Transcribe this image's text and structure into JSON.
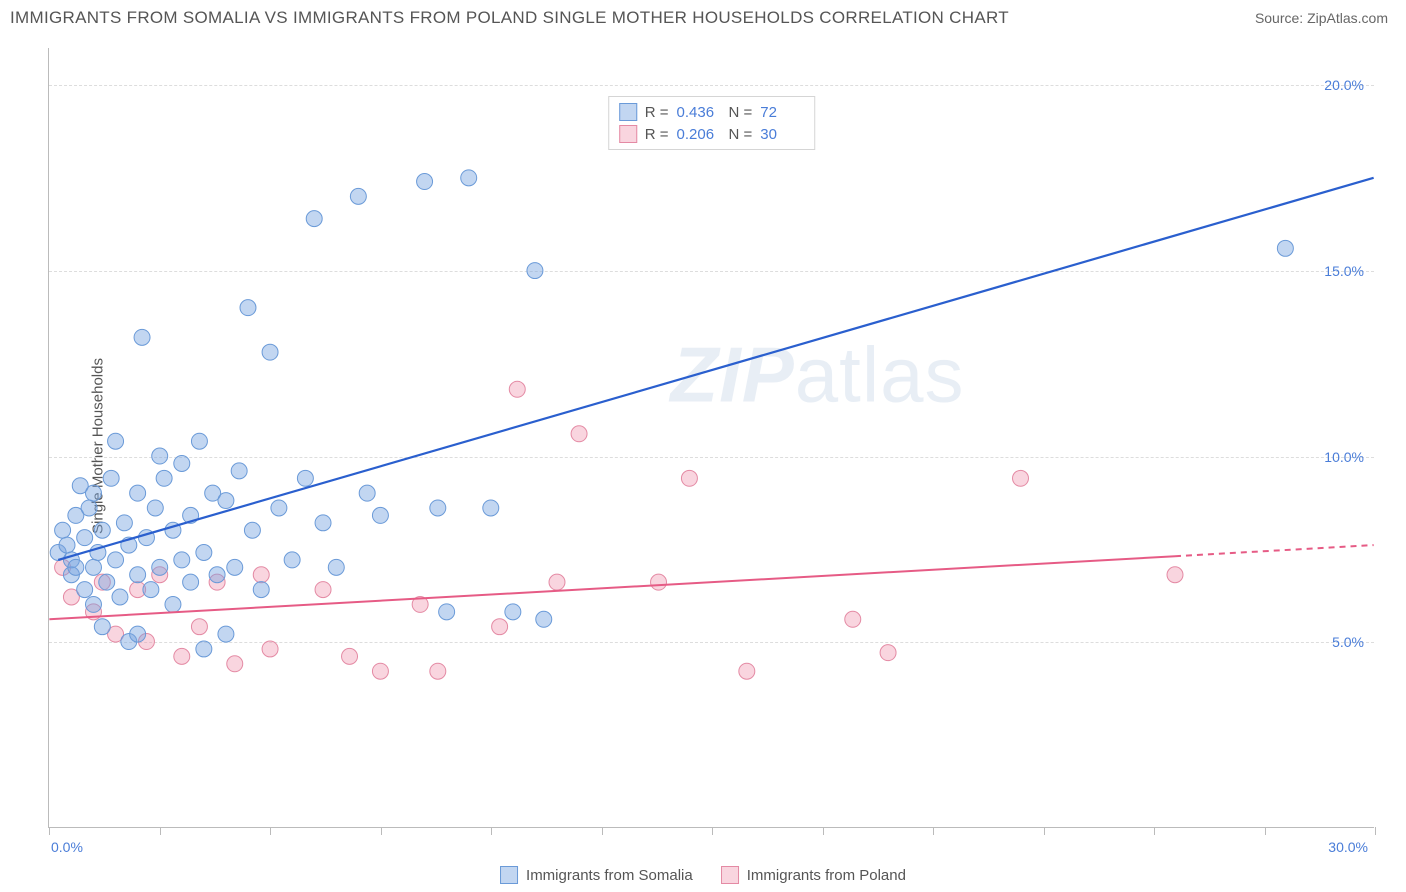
{
  "title": "IMMIGRANTS FROM SOMALIA VS IMMIGRANTS FROM POLAND SINGLE MOTHER HOUSEHOLDS CORRELATION CHART",
  "source": "Source: ZipAtlas.com",
  "ylabel": "Single Mother Households",
  "watermark_a": "ZIP",
  "watermark_b": "atlas",
  "chart": {
    "type": "scatter",
    "xlim": [
      0,
      30
    ],
    "ylim": [
      0,
      21
    ],
    "x_ticks": [
      0,
      2.5,
      5,
      7.5,
      10,
      12.5,
      15,
      17.5,
      20,
      22.5,
      25,
      27.5,
      30
    ],
    "x_tick_labels_shown": {
      "0": "0.0%",
      "30": "30.0%"
    },
    "y_grid": [
      5,
      10,
      15,
      20
    ],
    "y_tick_labels": {
      "5": "5.0%",
      "10": "10.0%",
      "15": "15.0%",
      "20": "20.0%"
    },
    "grid_color": "#dddddd",
    "axis_color": "#bbbbbb",
    "label_text_color": "#555555",
    "tick_value_color": "#4a7dd8",
    "background_color": "#ffffff",
    "series": [
      {
        "name": "Immigrants from Somalia",
        "color_fill": "rgba(120,165,225,0.45)",
        "color_stroke": "#6a9ad8",
        "trend_color": "#2a5fce",
        "trend_width": 2.2,
        "marker_radius": 8,
        "R": "0.436",
        "N": "72",
        "trend": {
          "x1": 0.2,
          "y1": 7.2,
          "x2": 30,
          "y2": 17.5
        },
        "points": [
          [
            0.2,
            7.4
          ],
          [
            0.3,
            8.0
          ],
          [
            0.4,
            7.6
          ],
          [
            0.5,
            6.8
          ],
          [
            0.5,
            7.2
          ],
          [
            0.6,
            8.4
          ],
          [
            0.6,
            7.0
          ],
          [
            0.7,
            9.2
          ],
          [
            0.8,
            6.4
          ],
          [
            0.8,
            7.8
          ],
          [
            0.9,
            8.6
          ],
          [
            1.0,
            7.0
          ],
          [
            1.0,
            6.0
          ],
          [
            1.0,
            9.0
          ],
          [
            1.1,
            7.4
          ],
          [
            1.2,
            5.4
          ],
          [
            1.2,
            8.0
          ],
          [
            1.3,
            6.6
          ],
          [
            1.4,
            9.4
          ],
          [
            1.5,
            7.2
          ],
          [
            1.5,
            10.4
          ],
          [
            1.6,
            6.2
          ],
          [
            1.7,
            8.2
          ],
          [
            1.8,
            7.6
          ],
          [
            1.8,
            5.0
          ],
          [
            2.0,
            9.0
          ],
          [
            2.0,
            6.8
          ],
          [
            2.1,
            13.2
          ],
          [
            2.2,
            7.8
          ],
          [
            2.3,
            6.4
          ],
          [
            2.4,
            8.6
          ],
          [
            2.5,
            7.0
          ],
          [
            2.5,
            10.0
          ],
          [
            2.6,
            9.4
          ],
          [
            2.8,
            6.0
          ],
          [
            2.8,
            8.0
          ],
          [
            3.0,
            7.2
          ],
          [
            3.0,
            9.8
          ],
          [
            3.2,
            6.6
          ],
          [
            3.2,
            8.4
          ],
          [
            3.4,
            10.4
          ],
          [
            3.5,
            7.4
          ],
          [
            3.7,
            9.0
          ],
          [
            3.8,
            6.8
          ],
          [
            4.0,
            8.8
          ],
          [
            4.2,
            7.0
          ],
          [
            4.3,
            9.6
          ],
          [
            4.5,
            14.0
          ],
          [
            4.6,
            8.0
          ],
          [
            4.8,
            6.4
          ],
          [
            5.0,
            12.8
          ],
          [
            5.2,
            8.6
          ],
          [
            5.5,
            7.2
          ],
          [
            5.8,
            9.4
          ],
          [
            6.0,
            16.4
          ],
          [
            6.2,
            8.2
          ],
          [
            6.5,
            7.0
          ],
          [
            7.0,
            17.0
          ],
          [
            7.2,
            9.0
          ],
          [
            7.5,
            8.4
          ],
          [
            8.5,
            17.4
          ],
          [
            8.8,
            8.6
          ],
          [
            9.0,
            5.8
          ],
          [
            9.5,
            17.5
          ],
          [
            10.0,
            8.6
          ],
          [
            10.5,
            5.8
          ],
          [
            11.0,
            15.0
          ],
          [
            11.2,
            5.6
          ],
          [
            28.0,
            15.6
          ],
          [
            4.0,
            5.2
          ],
          [
            3.5,
            4.8
          ],
          [
            2.0,
            5.2
          ]
        ]
      },
      {
        "name": "Immigrants from Poland",
        "color_fill": "rgba(240,150,175,0.40)",
        "color_stroke": "#e48aa4",
        "trend_color": "#e65b85",
        "trend_width": 2,
        "trend_dash_after": 25.5,
        "marker_radius": 8,
        "R": "0.206",
        "N": "30",
        "trend": {
          "x1": 0,
          "y1": 5.6,
          "x2": 30,
          "y2": 7.6
        },
        "points": [
          [
            0.3,
            7.0
          ],
          [
            0.5,
            6.2
          ],
          [
            1.0,
            5.8
          ],
          [
            1.2,
            6.6
          ],
          [
            1.5,
            5.2
          ],
          [
            2.0,
            6.4
          ],
          [
            2.2,
            5.0
          ],
          [
            2.5,
            6.8
          ],
          [
            3.0,
            4.6
          ],
          [
            3.4,
            5.4
          ],
          [
            3.8,
            6.6
          ],
          [
            4.2,
            4.4
          ],
          [
            4.8,
            6.8
          ],
          [
            5.0,
            4.8
          ],
          [
            6.2,
            6.4
          ],
          [
            6.8,
            4.6
          ],
          [
            7.5,
            4.2
          ],
          [
            8.4,
            6.0
          ],
          [
            8.8,
            4.2
          ],
          [
            10.2,
            5.4
          ],
          [
            10.6,
            11.8
          ],
          [
            11.5,
            6.6
          ],
          [
            12.0,
            10.6
          ],
          [
            13.8,
            6.6
          ],
          [
            14.5,
            9.4
          ],
          [
            15.8,
            4.2
          ],
          [
            18.2,
            5.6
          ],
          [
            19.0,
            4.7
          ],
          [
            22.0,
            9.4
          ],
          [
            25.5,
            6.8
          ]
        ]
      }
    ]
  },
  "legend_top": {
    "r_label": "R =",
    "n_label": "N ="
  },
  "legend_bottom": [
    "Immigrants from Somalia",
    "Immigrants from Poland"
  ]
}
